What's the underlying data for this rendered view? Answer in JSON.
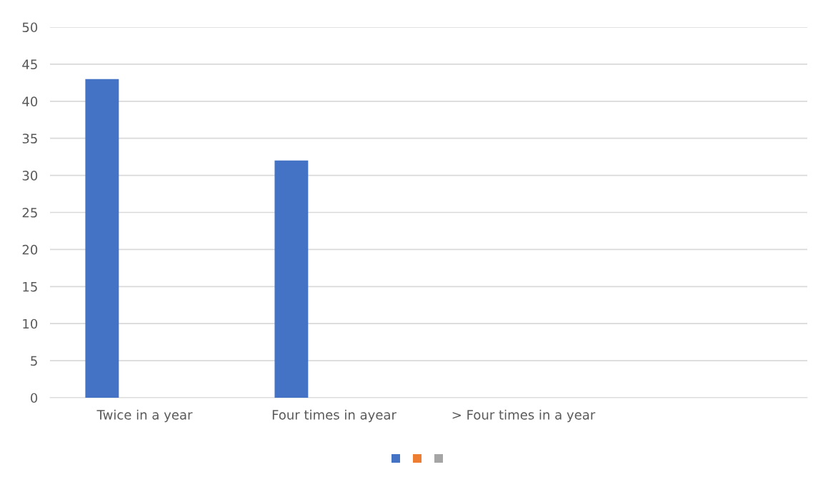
{
  "chart_data": {
    "type": "bar",
    "categories": [
      "Twice in a year",
      "Four times in ayear",
      "> Four times in a year",
      null
    ],
    "series": [
      {
        "color": "#4472c4",
        "values": [
          43,
          32,
          null,
          null
        ]
      },
      {
        "color": "#ed7d31",
        "values": [
          null,
          null,
          null,
          null
        ]
      },
      {
        "color": "#a5a5a5",
        "values": [
          null,
          null,
          null,
          null
        ]
      }
    ],
    "ylim": [
      0,
      50
    ],
    "yticks": [
      0,
      5,
      10,
      15,
      20,
      25,
      30,
      35,
      40,
      45,
      50
    ],
    "grid": "y"
  }
}
